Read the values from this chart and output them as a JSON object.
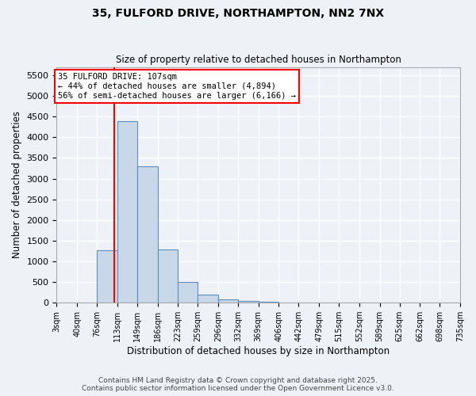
{
  "title1": "35, FULFORD DRIVE, NORTHAMPTON, NN2 7NX",
  "title2": "Size of property relative to detached houses in Northampton",
  "xlabel": "Distribution of detached houses by size in Northampton",
  "ylabel": "Number of detached properties",
  "bin_lefts": [
    3,
    40,
    76,
    113,
    149,
    186,
    223,
    259,
    296,
    332,
    369,
    406,
    442,
    479,
    515,
    552,
    589,
    625,
    662,
    698
  ],
  "bin_rights": [
    40,
    76,
    113,
    149,
    186,
    223,
    259,
    296,
    332,
    369,
    406,
    442,
    479,
    515,
    552,
    589,
    625,
    662,
    698,
    735
  ],
  "bin_labels": [
    "3sqm",
    "40sqm",
    "76sqm",
    "113sqm",
    "149sqm",
    "186sqm",
    "223sqm",
    "259sqm",
    "296sqm",
    "332sqm",
    "369sqm",
    "406sqm",
    "442sqm",
    "479sqm",
    "515sqm",
    "552sqm",
    "589sqm",
    "625sqm",
    "662sqm",
    "698sqm",
    "735sqm"
  ],
  "bar_heights": [
    0,
    0,
    1260,
    4380,
    3300,
    1280,
    500,
    200,
    90,
    50,
    20,
    10,
    5,
    2,
    1,
    0,
    0,
    0,
    0,
    0
  ],
  "bar_color": "#c8d8e8",
  "bar_edgecolor": "#5a8fc0",
  "vline_x": 107,
  "vline_color": "red",
  "ylim": [
    0,
    5700
  ],
  "yticks": [
    0,
    500,
    1000,
    1500,
    2000,
    2500,
    3000,
    3500,
    4000,
    4500,
    5000,
    5500
  ],
  "annotation_text": "35 FULFORD DRIVE: 107sqm\n← 44% of detached houses are smaller (4,894)\n56% of semi-detached houses are larger (6,166) →",
  "annotation_box_color": "white",
  "annotation_box_edgecolor": "red",
  "footer1": "Contains HM Land Registry data © Crown copyright and database right 2025.",
  "footer2": "Contains public sector information licensed under the Open Government Licence v3.0.",
  "bg_color": "#eef2f7",
  "grid_color": "white"
}
